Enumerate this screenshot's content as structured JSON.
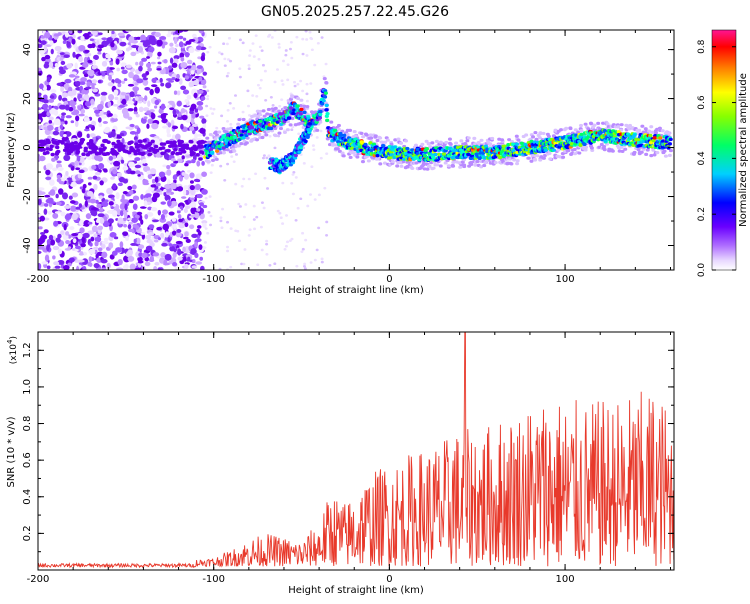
{
  "title": "GN05.2025.257.22.45.G26",
  "colors": {
    "snr_line": "#e8392b",
    "axis": "#000000"
  },
  "chart_data": [
    {
      "type": "heatmap",
      "title": "GN05.2025.257.22.45.G26",
      "xlabel": "Height of straight line (km)",
      "ylabel": "Frequency (Hz)",
      "xlim": [
        -200,
        162
      ],
      "ylim": [
        -50,
        48
      ],
      "xticks": [
        -200,
        -100,
        0,
        100
      ],
      "yticks": [
        -40,
        -20,
        0,
        20,
        40
      ],
      "colorbar": {
        "label": "Normalized spectral amplitude",
        "range": [
          0,
          0.86
        ],
        "ticks": [
          0.0,
          0.2,
          0.4,
          0.6,
          0.8
        ],
        "tick_labels": [
          "0.0",
          "0.2",
          "0.4",
          "0.6",
          "0.8"
        ],
        "colormap": [
          "#f0e8ff",
          "#d8b8ff",
          "#8a2be2",
          "#0000ff",
          "#00c8ff",
          "#00ff80",
          "#80ff00",
          "#ffff00",
          "#ff8000",
          "#ff0000",
          "#ff1493"
        ]
      },
      "signal_track": {
        "description_points": [
          {
            "x": -105,
            "y": -2
          },
          {
            "x": -95,
            "y": 2
          },
          {
            "x": -85,
            "y": 6
          },
          {
            "x": -75,
            "y": 9
          },
          {
            "x": -68,
            "y": 10
          },
          {
            "x": -60,
            "y": 12
          },
          {
            "x": -55,
            "y": 16
          },
          {
            "x": -50,
            "y": 13
          },
          {
            "x": -45,
            "y": 9
          },
          {
            "x": -40,
            "y": 14
          },
          {
            "x": -37,
            "y": 24
          },
          {
            "x": -35,
            "y": 6
          },
          {
            "x": -25,
            "y": 2
          },
          {
            "x": -15,
            "y": 0
          },
          {
            "x": 0,
            "y": -2
          },
          {
            "x": 20,
            "y": -3
          },
          {
            "x": 40,
            "y": -2
          },
          {
            "x": 60,
            "y": -2
          },
          {
            "x": 80,
            "y": 0
          },
          {
            "x": 100,
            "y": 2
          },
          {
            "x": 120,
            "y": 5
          },
          {
            "x": 140,
            "y": 3
          },
          {
            "x": 160,
            "y": 2
          }
        ],
        "lower_branch": [
          {
            "x": -68,
            "y": -6
          },
          {
            "x": -62,
            "y": -8
          },
          {
            "x": -55,
            "y": -4
          },
          {
            "x": -50,
            "y": 2
          },
          {
            "x": -45,
            "y": 8
          }
        ]
      }
    },
    {
      "type": "line",
      "xlabel": "Height of straight line (km)",
      "ylabel": "SNR (10 * v/v)",
      "multiplier_label": "(x10",
      "multiplier_exp": "4",
      "multiplier_close": ")",
      "xlim": [
        -200,
        162
      ],
      "ylim": [
        0,
        1.3
      ],
      "xticks": [
        -200,
        -100,
        0,
        100
      ],
      "yticks": [
        0.2,
        0.4,
        0.6,
        0.8,
        1.0,
        1.2
      ],
      "ytick_labels": [
        "0.2",
        "0.4",
        "0.6",
        "0.8",
        "1.0",
        "1.2"
      ],
      "envelope": [
        {
          "x": -200,
          "y": 0.03
        },
        {
          "x": -120,
          "y": 0.03
        },
        {
          "x": -100,
          "y": 0.05
        },
        {
          "x": -90,
          "y": 0.09
        },
        {
          "x": -80,
          "y": 0.15
        },
        {
          "x": -70,
          "y": 0.18
        },
        {
          "x": -60,
          "y": 0.16
        },
        {
          "x": -50,
          "y": 0.14
        },
        {
          "x": -40,
          "y": 0.25
        },
        {
          "x": -33,
          "y": 0.42
        },
        {
          "x": -25,
          "y": 0.35
        },
        {
          "x": -15,
          "y": 0.48
        },
        {
          "x": 0,
          "y": 0.58
        },
        {
          "x": 20,
          "y": 0.65
        },
        {
          "x": 35,
          "y": 0.72
        },
        {
          "x": 43,
          "y": 1.3
        },
        {
          "x": 50,
          "y": 0.75
        },
        {
          "x": 70,
          "y": 0.85
        },
        {
          "x": 90,
          "y": 0.95
        },
        {
          "x": 110,
          "y": 0.9
        },
        {
          "x": 130,
          "y": 0.92
        },
        {
          "x": 150,
          "y": 0.98
        },
        {
          "x": 162,
          "y": 0.85
        }
      ],
      "peak": {
        "x": 43,
        "y": 1.3
      }
    }
  ]
}
